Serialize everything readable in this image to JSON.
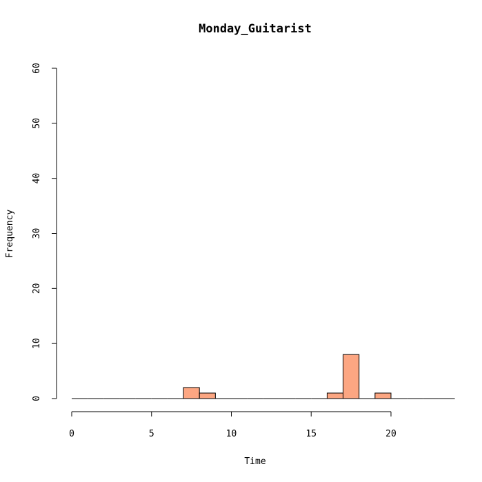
{
  "chart_data": {
    "type": "bar",
    "title": "Monday_Guitarist",
    "xlabel": "Time",
    "ylabel": "Frequency",
    "xlim": [
      0,
      24
    ],
    "ylim": [
      0,
      60
    ],
    "x_ticks": [
      0,
      5,
      10,
      15,
      20
    ],
    "y_ticks": [
      0,
      10,
      20,
      30,
      40,
      50,
      60
    ],
    "bin_width": 1,
    "bins": [
      {
        "start": 0,
        "end": 1,
        "count": 0
      },
      {
        "start": 1,
        "end": 2,
        "count": 0
      },
      {
        "start": 2,
        "end": 3,
        "count": 0
      },
      {
        "start": 3,
        "end": 4,
        "count": 0
      },
      {
        "start": 4,
        "end": 5,
        "count": 0
      },
      {
        "start": 5,
        "end": 6,
        "count": 0
      },
      {
        "start": 6,
        "end": 7,
        "count": 0
      },
      {
        "start": 7,
        "end": 8,
        "count": 2
      },
      {
        "start": 8,
        "end": 9,
        "count": 1
      },
      {
        "start": 9,
        "end": 10,
        "count": 0
      },
      {
        "start": 10,
        "end": 11,
        "count": 0
      },
      {
        "start": 11,
        "end": 12,
        "count": 0
      },
      {
        "start": 12,
        "end": 13,
        "count": 0
      },
      {
        "start": 13,
        "end": 14,
        "count": 0
      },
      {
        "start": 14,
        "end": 15,
        "count": 0
      },
      {
        "start": 15,
        "end": 16,
        "count": 0
      },
      {
        "start": 16,
        "end": 17,
        "count": 1
      },
      {
        "start": 17,
        "end": 18,
        "count": 8
      },
      {
        "start": 18,
        "end": 19,
        "count": 0
      },
      {
        "start": 19,
        "end": 20,
        "count": 1
      },
      {
        "start": 20,
        "end": 21,
        "count": 0
      },
      {
        "start": 21,
        "end": 22,
        "count": 0
      },
      {
        "start": 22,
        "end": 23,
        "count": 0
      },
      {
        "start": 23,
        "end": 24,
        "count": 0
      }
    ],
    "bar_color": "#FCA682",
    "grid": false,
    "legend": "none"
  }
}
